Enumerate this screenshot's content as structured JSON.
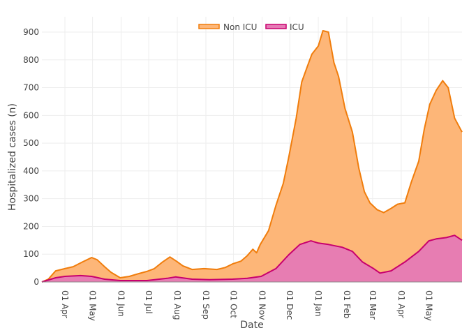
{
  "chart_data": {
    "type": "area",
    "stacked": true,
    "title": "",
    "xlabel": "Date",
    "ylabel": "Hospitalized cases (n)",
    "x_unit": "days since start_date",
    "start_date": "2020-03-07",
    "xlim": [
      0,
      456
    ],
    "ylim": [
      0,
      900
    ],
    "grid": true,
    "legend_position": "top-center",
    "y_ticks": [
      0,
      100,
      200,
      300,
      400,
      500,
      600,
      700,
      800,
      900
    ],
    "x_ticks": [
      {
        "day": 25,
        "label": "01 Apr"
      },
      {
        "day": 55,
        "label": "01 May"
      },
      {
        "day": 86,
        "label": "01 Jun"
      },
      {
        "day": 116,
        "label": "01 Jul"
      },
      {
        "day": 147,
        "label": "01 Aug"
      },
      {
        "day": 178,
        "label": "01 Sep"
      },
      {
        "day": 208,
        "label": "01 Oct"
      },
      {
        "day": 239,
        "label": "01 Nov"
      },
      {
        "day": 269,
        "label": "01 Dec"
      },
      {
        "day": 300,
        "label": "01 Jan"
      },
      {
        "day": 331,
        "label": "01 Feb"
      },
      {
        "day": 359,
        "label": "01 Mar"
      },
      {
        "day": 390,
        "label": "01 Apr"
      },
      {
        "day": 420,
        "label": "01 May"
      }
    ],
    "series": [
      {
        "name": "Non ICU",
        "note": "stacked top (Non ICU + ICU)",
        "line_color": "#f07d0c",
        "fill_color": "#fdb678",
        "x": [
          0,
          7,
          15,
          25,
          34,
          44,
          54,
          60,
          68,
          75,
          85,
          95,
          105,
          114,
          122,
          131,
          139,
          146,
          153,
          163,
          176,
          190,
          199,
          207,
          216,
          223,
          229,
          233,
          237,
          246,
          254,
          262,
          268,
          276,
          282,
          288,
          293,
          300,
          305,
          311,
          317,
          322,
          329,
          337,
          344,
          350,
          356,
          364,
          371,
          379,
          386,
          394,
          401,
          409,
          415,
          421,
          428,
          435,
          441,
          448,
          456
        ],
        "values": [
          0,
          10,
          40,
          48,
          55,
          72,
          88,
          80,
          55,
          35,
          15,
          20,
          30,
          38,
          48,
          72,
          90,
          75,
          58,
          45,
          48,
          45,
          52,
          65,
          75,
          95,
          118,
          105,
          135,
          185,
          275,
          355,
          450,
          590,
          720,
          775,
          820,
          850,
          905,
          900,
          790,
          740,
          625,
          540,
          410,
          325,
          285,
          260,
          250,
          265,
          280,
          285,
          360,
          435,
          550,
          640,
          690,
          725,
          700,
          590,
          540
        ]
      },
      {
        "name": "ICU",
        "line_color": "#c8006e",
        "fill_color": "#e67ab5",
        "x": [
          0,
          15,
          25,
          42,
          54,
          68,
          85,
          114,
          136,
          145,
          163,
          182,
          207,
          223,
          238,
          254,
          268,
          280,
          292,
          300,
          311,
          326,
          337,
          348,
          360,
          367,
          379,
          394,
          409,
          420,
          428,
          439,
          448,
          456
        ],
        "values": [
          0,
          15,
          20,
          23,
          20,
          10,
          5,
          5,
          13,
          18,
          10,
          8,
          10,
          13,
          20,
          48,
          98,
          135,
          148,
          140,
          135,
          125,
          110,
          72,
          48,
          32,
          40,
          72,
          110,
          148,
          155,
          160,
          168,
          150
        ]
      }
    ]
  }
}
